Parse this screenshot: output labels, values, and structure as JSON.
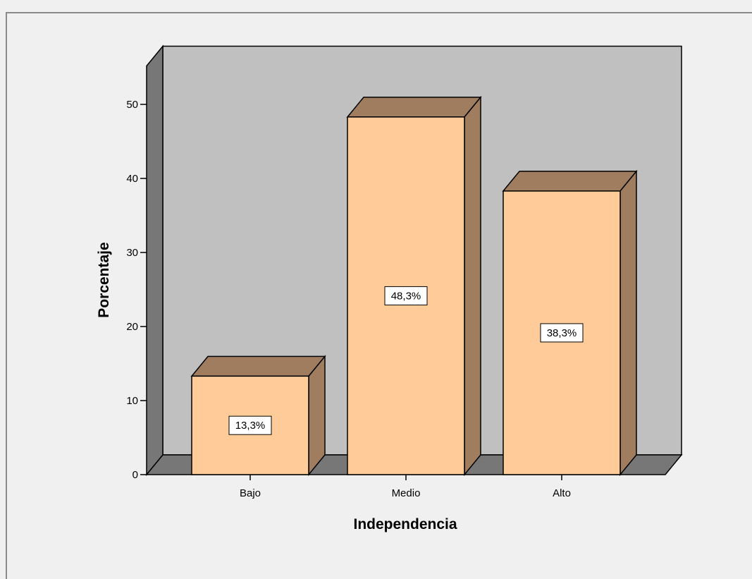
{
  "chart_data": {
    "type": "bar",
    "style": "3d",
    "categories": [
      "Bajo",
      "Medio",
      "Alto"
    ],
    "values": [
      13.3,
      48.3,
      38.3
    ],
    "data_labels": [
      "13,3%",
      "48,3%",
      "38,3%"
    ],
    "xlabel": "Independencia",
    "ylabel": "Porcentaje",
    "ylim": [
      0,
      55
    ],
    "yticks": [
      0,
      10,
      20,
      30,
      40,
      50
    ],
    "grid": false,
    "legend": "none",
    "colors": {
      "bar_front": "#ffcc99",
      "bar_side": "#a07d5f",
      "bar_top": "#a07d5f",
      "wall_back": "#c0c0c0",
      "wall_side": "#777777",
      "floor": "#777777",
      "background": "#f0f0f0",
      "outline": "#000000"
    }
  }
}
